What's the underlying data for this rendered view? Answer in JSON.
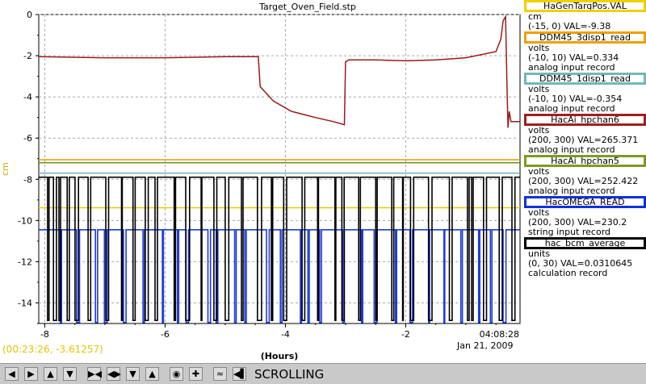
{
  "chart_data": {
    "type": "line",
    "title": "Target_Oven_Field.stp",
    "xlabel": "(Hours)",
    "ylabel": "cm",
    "xlim": [
      -8.1,
      -0.1
    ],
    "ylim": [
      -15,
      0
    ],
    "x_ticks": [
      "-8",
      "-6",
      "-4",
      "-2"
    ],
    "y_ticks": [
      "0",
      "-2",
      "-4",
      "-6",
      "-8",
      "-10",
      "-12",
      "-14"
    ],
    "grid": true,
    "legend_position": "right",
    "end_time": "04:08:28",
    "end_date": "Jan 21, 2009",
    "cursor_readout": "(00:23:26, -3.61257)",
    "series": [
      {
        "name": "HaGenTargPos.VAL",
        "color": "#e6c800",
        "constant": -9.38,
        "x": [
          -8.1,
          -0.1
        ],
        "y": [
          -9.38,
          -9.38
        ]
      },
      {
        "name": "DDM45_3disp1_read",
        "color": "#d8a000",
        "constant": -7.05,
        "x": [
          -8.1,
          -0.1
        ],
        "y": [
          -7.05,
          -7.05
        ]
      },
      {
        "name": "DDM45_1disp1_read",
        "color": "#6fb0b0",
        "constant": -7.7,
        "x": [
          -8.1,
          -0.1
        ],
        "y": [
          -7.7,
          -7.7
        ]
      },
      {
        "name": "HacAi_hpchan6",
        "color": "#9b1b1b",
        "x": [
          -8.1,
          -7.0,
          -6.0,
          -5.0,
          -4.45,
          -4.42,
          -4.2,
          -3.9,
          -3.5,
          -3.2,
          -3.02,
          -3.0,
          -2.95,
          -2.5,
          -2.0,
          -1.5,
          -1.0,
          -0.5,
          -0.42,
          -0.38,
          -0.34,
          -0.32,
          -0.3,
          -0.28,
          -0.25,
          -0.2,
          -0.1
        ],
        "y": [
          -2.05,
          -2.1,
          -2.1,
          -2.05,
          -2.05,
          -3.5,
          -4.2,
          -4.7,
          -5.0,
          -5.2,
          -5.35,
          -2.3,
          -2.2,
          -2.2,
          -2.25,
          -2.2,
          -2.1,
          -1.8,
          -1.2,
          -0.3,
          -0.1,
          -3.0,
          -5.5,
          -4.7,
          -5.2,
          -5.2,
          -5.2
        ]
      },
      {
        "name": "HacAi_hpchan5",
        "color": "#7a8c1a",
        "constant": -7.2,
        "x": [
          -8.1,
          -0.1
        ],
        "y": [
          -7.2,
          -7.2
        ]
      },
      {
        "name": "HacOMEGA_READ",
        "color": "#1f3cd8",
        "baseline": -10.45,
        "low": -14.95
      },
      {
        "name": "hac_bcm_average",
        "color": "#000000",
        "baseline": -7.9,
        "low": -14.85
      }
    ]
  },
  "legend": [
    {
      "name": "HaGenTargPos.VAL",
      "border": "#f0d000",
      "lines": [
        "cm",
        "(-15, 0) VAL=-9.38"
      ]
    },
    {
      "name": "DDM45_3disp1_read",
      "border": "#f0a000",
      "lines": [
        "volts",
        "(-10, 10) VAL=0.334",
        "analog input record"
      ]
    },
    {
      "name": "DDM45_1disp1_read",
      "border": "#70b8b8",
      "lines": [
        "volts",
        "(-10, 10) VAL=-0.354",
        "analog input record"
      ]
    },
    {
      "name": "HacAi_hpchan6",
      "border": "#a02020",
      "lines": [
        "volts",
        "(200, 300) VAL=265.371",
        "analog input record"
      ]
    },
    {
      "name": "HacAi_hpchan5",
      "border": "#7f9a20",
      "lines": [
        "volts",
        "(200, 300) VAL=252.422",
        "analog input record"
      ]
    },
    {
      "name": "HacOMEGA_READ",
      "border": "#1030e0",
      "lines": [
        "volts",
        "(200, 300) VAL=230.2",
        "string input record"
      ]
    },
    {
      "name": "hac_bcm_average",
      "border": "#000000",
      "lines": [
        "units",
        "(0, 30) VAL=0.0310645",
        "calculation record"
      ]
    }
  ],
  "toolbar": {
    "mode_label": "SCROLLING",
    "icons": [
      "arrow-left-icon",
      "arrow-right-icon",
      "arrow-up-icon",
      "arrow-down-icon",
      "zoom-in-horizontal-icon",
      "zoom-out-horizontal-icon",
      "zoom-in-vertical-icon",
      "zoom-out-vertical-icon",
      "record-icon",
      "add-icon",
      "graph-icon",
      "scroll-mode-icon"
    ]
  }
}
